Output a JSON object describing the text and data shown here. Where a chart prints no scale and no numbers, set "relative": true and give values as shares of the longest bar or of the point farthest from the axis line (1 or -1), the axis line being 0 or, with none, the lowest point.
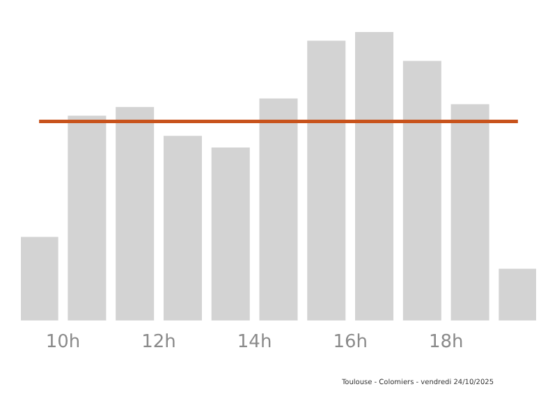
{
  "chart_data": {
    "type": "bar",
    "relative": true,
    "x": [
      9.5,
      10.5,
      11.5,
      12.5,
      13.5,
      14.5,
      15.5,
      16.5,
      17.5,
      18.5,
      19.5
    ],
    "values": [
      0.29,
      0.71,
      0.74,
      0.64,
      0.6,
      0.77,
      0.97,
      1,
      0.9,
      0.75,
      0.18
    ],
    "color": "#d3d3d3",
    "xlim": [
      9.12,
      19.88
    ],
    "xticks": [
      {
        "value": 10,
        "label": "10h"
      },
      {
        "value": 12,
        "label": "12h"
      },
      {
        "value": 14,
        "label": "14h"
      },
      {
        "value": 16,
        "label": "16h"
      },
      {
        "value": 18,
        "label": "18h"
      }
    ],
    "ref_lines": [
      {
        "axis": "y",
        "value": 0.69,
        "color": "#c8531c"
      }
    ],
    "annotations": [
      "Toulouse - Colomiers - vendredi 24/10/2025"
    ],
    "grid": false,
    "legend": false
  }
}
